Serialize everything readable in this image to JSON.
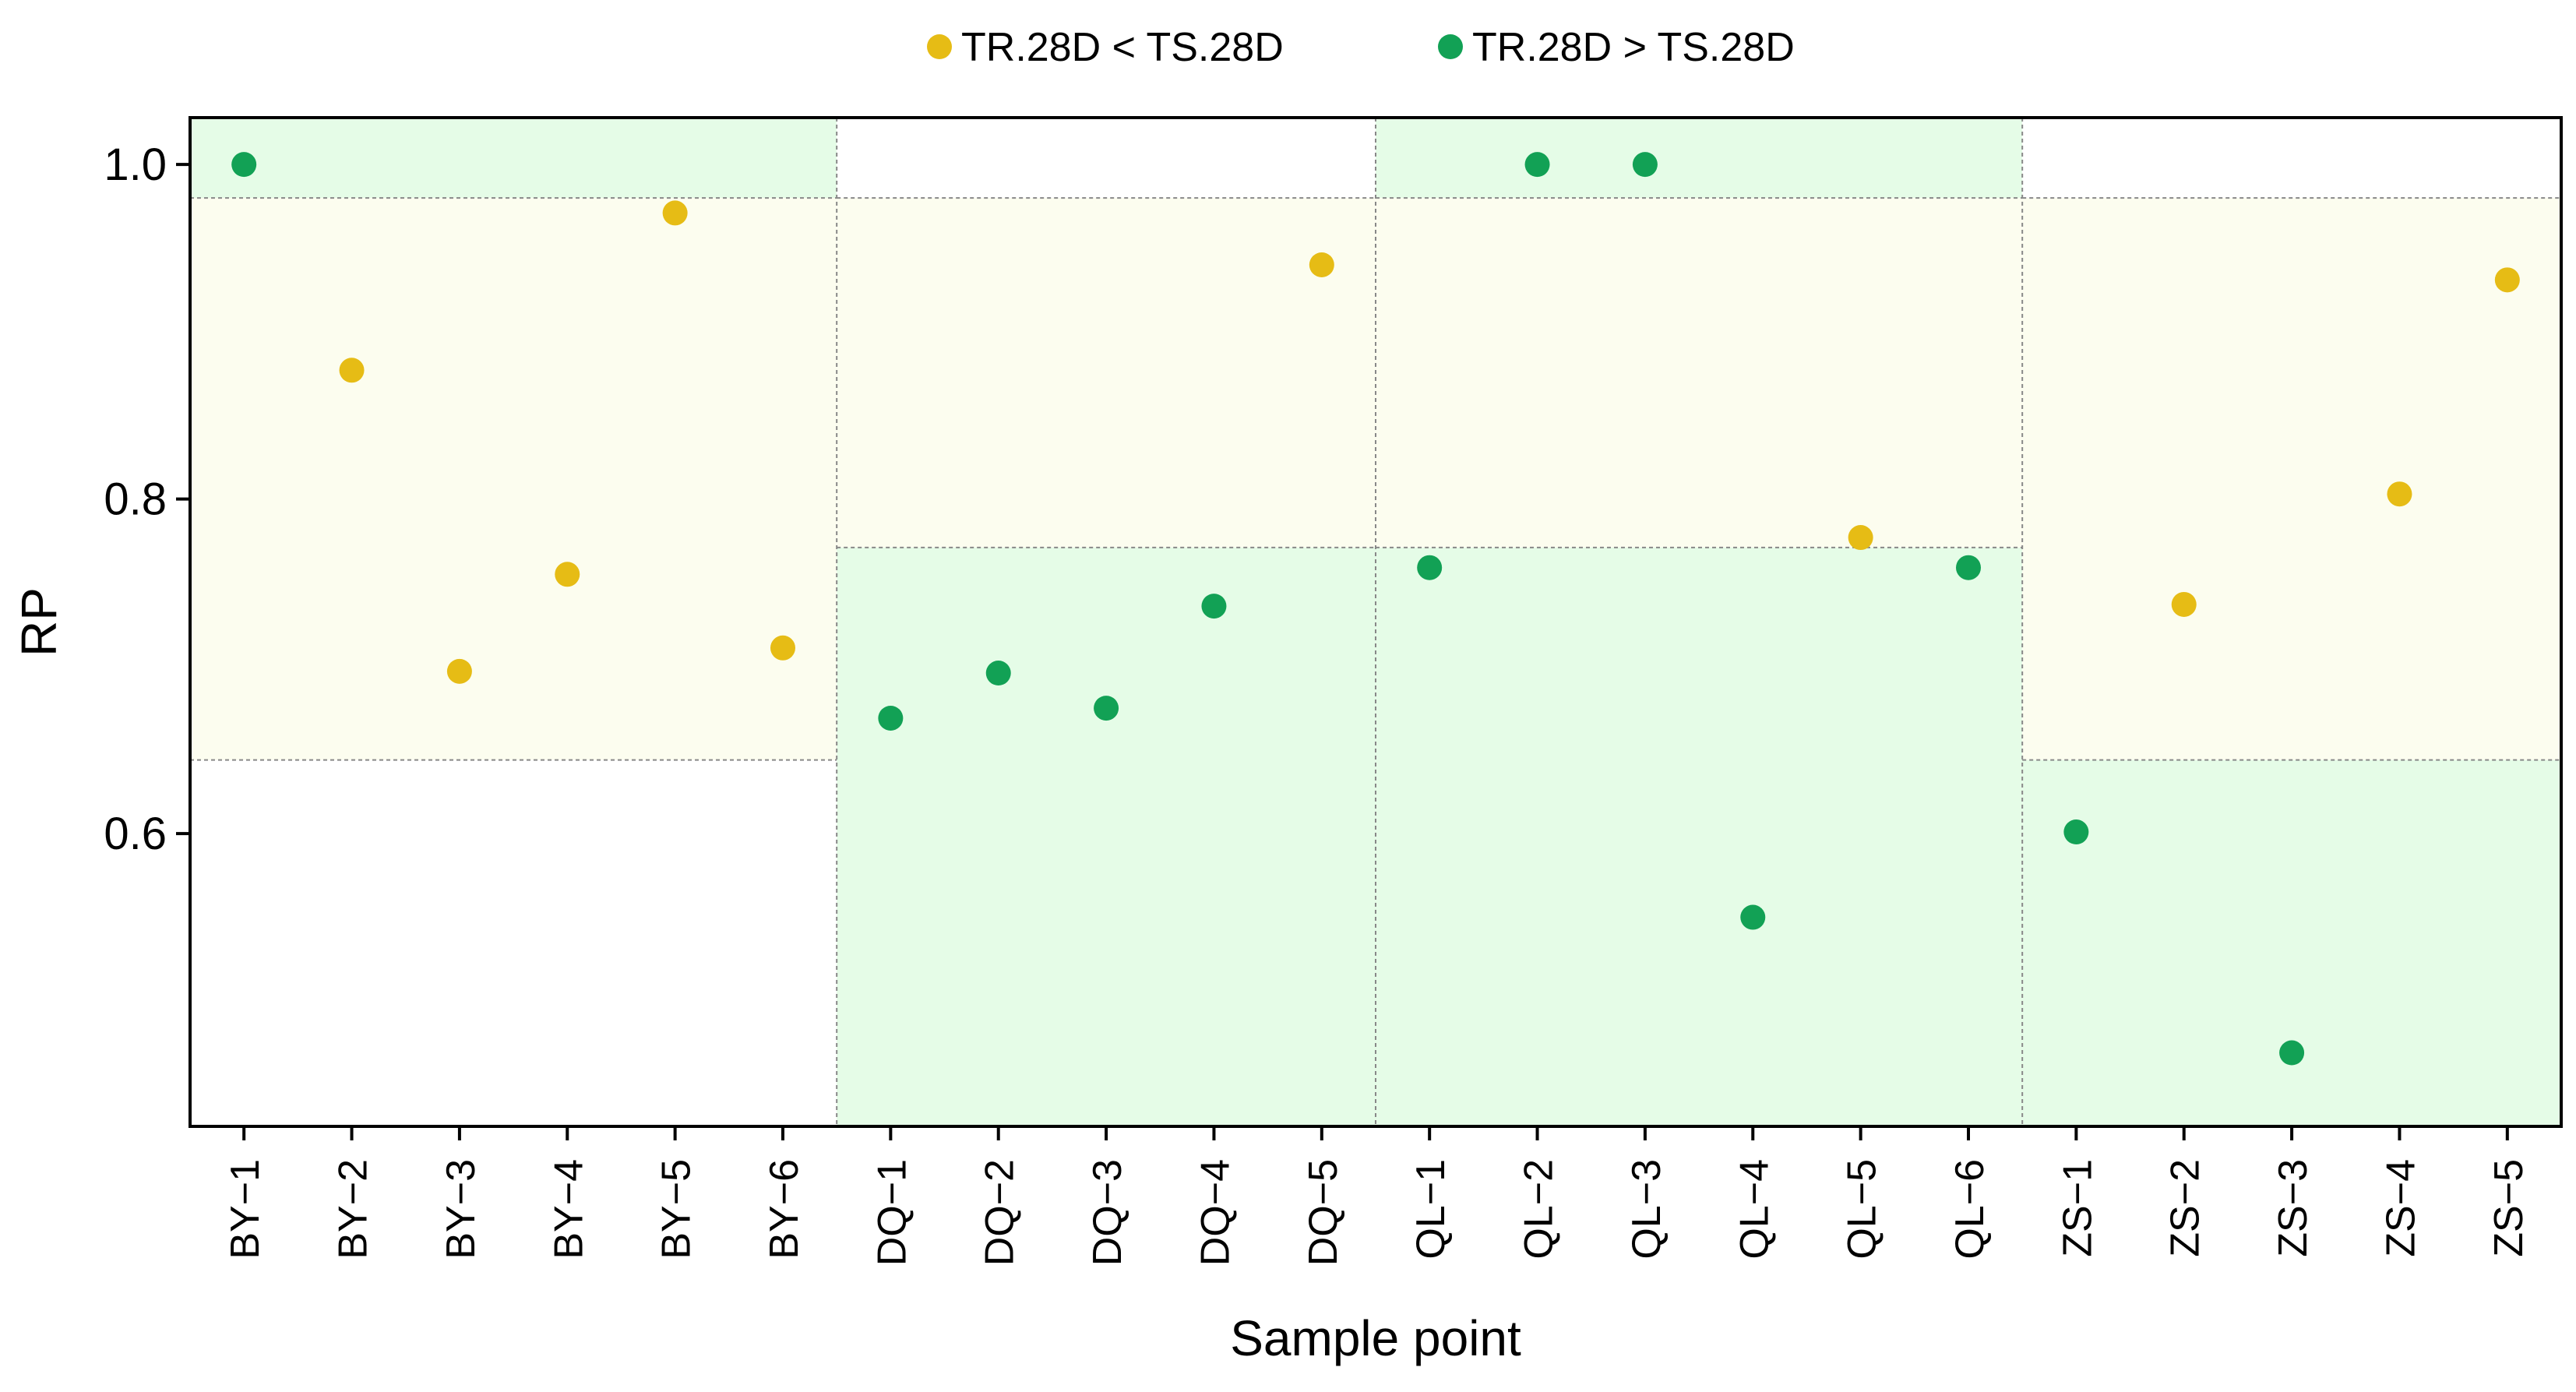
{
  "chart_data": {
    "type": "scatter",
    "title": "",
    "xlabel": "Sample point",
    "ylabel": "RP",
    "ylim": [
      0.425,
      1.028
    ],
    "yticks": [
      0.6,
      0.8,
      1.0
    ],
    "ytick_labels": [
      "0.6",
      "0.8",
      "1.0"
    ],
    "grid": false,
    "legend_position": "top-center",
    "colors": {
      "less": "#E6BC15",
      "greater": "#12A155",
      "band_green": "#E5FCE7",
      "band_yellow": "#FCFDEF",
      "divider": "#888888"
    },
    "legend": [
      {
        "key": "less",
        "label": "TR.28D < TS.28D"
      },
      {
        "key": "greater",
        "label": "TR.28D > TS.28D"
      }
    ],
    "categories": [
      "BY−1",
      "BY−2",
      "BY−3",
      "BY−4",
      "BY−5",
      "BY−6",
      "DQ−1",
      "DQ−2",
      "DQ−3",
      "DQ−4",
      "DQ−5",
      "QL−1",
      "QL−2",
      "QL−3",
      "QL−4",
      "QL−5",
      "QL−6",
      "ZS−1",
      "ZS−2",
      "ZS−3",
      "ZS−4",
      "ZS−5"
    ],
    "points": [
      {
        "x": "BY−1",
        "y": 1.0,
        "series": "greater"
      },
      {
        "x": "BY−2",
        "y": 0.877,
        "series": "less"
      },
      {
        "x": "BY−3",
        "y": 0.697,
        "series": "less"
      },
      {
        "x": "BY−4",
        "y": 0.755,
        "series": "less"
      },
      {
        "x": "BY−5",
        "y": 0.971,
        "series": "less"
      },
      {
        "x": "BY−6",
        "y": 0.711,
        "series": "less"
      },
      {
        "x": "DQ−1",
        "y": 0.669,
        "series": "greater"
      },
      {
        "x": "DQ−2",
        "y": 0.696,
        "series": "greater"
      },
      {
        "x": "DQ−3",
        "y": 0.675,
        "series": "greater"
      },
      {
        "x": "DQ−4",
        "y": 0.736,
        "series": "greater"
      },
      {
        "x": "DQ−5",
        "y": 0.94,
        "series": "less"
      },
      {
        "x": "QL−1",
        "y": 0.759,
        "series": "greater"
      },
      {
        "x": "QL−2",
        "y": 1.0,
        "series": "greater"
      },
      {
        "x": "QL−3",
        "y": 1.0,
        "series": "greater"
      },
      {
        "x": "QL−4",
        "y": 0.55,
        "series": "greater"
      },
      {
        "x": "QL−5",
        "y": 0.777,
        "series": "less"
      },
      {
        "x": "QL−6",
        "y": 0.759,
        "series": "greater"
      },
      {
        "x": "ZS−1",
        "y": 0.601,
        "series": "greater"
      },
      {
        "x": "ZS−2",
        "y": 0.737,
        "series": "less"
      },
      {
        "x": "ZS−3",
        "y": 0.469,
        "series": "greater"
      },
      {
        "x": "ZS−4",
        "y": 0.803,
        "series": "less"
      },
      {
        "x": "ZS−5",
        "y": 0.931,
        "series": "less"
      }
    ],
    "groups": [
      {
        "name": "BY",
        "from": "BY−1",
        "to": "BY−6",
        "bands": [
          {
            "y0": 0.98,
            "y1": 1.028,
            "color": "band_green"
          },
          {
            "y0": 0.644,
            "y1": 0.98,
            "color": "band_yellow"
          }
        ],
        "dividers": [
          0.98,
          0.644
        ]
      },
      {
        "name": "DQ",
        "from": "DQ−1",
        "to": "DQ−5",
        "bands": [
          {
            "y0": 0.771,
            "y1": 0.98,
            "color": "band_yellow"
          },
          {
            "y0": 0.425,
            "y1": 0.771,
            "color": "band_green"
          }
        ],
        "dividers": [
          0.98,
          0.771
        ]
      },
      {
        "name": "QL",
        "from": "QL−1",
        "to": "QL−6",
        "bands": [
          {
            "y0": 0.98,
            "y1": 1.028,
            "color": "band_green"
          },
          {
            "y0": 0.771,
            "y1": 0.98,
            "color": "band_yellow"
          },
          {
            "y0": 0.425,
            "y1": 0.771,
            "color": "band_green"
          }
        ],
        "dividers": [
          0.98,
          0.771
        ]
      },
      {
        "name": "ZS",
        "from": "ZS−1",
        "to": "ZS−5",
        "bands": [
          {
            "y0": 0.644,
            "y1": 0.98,
            "color": "band_yellow"
          },
          {
            "y0": 0.425,
            "y1": 0.644,
            "color": "band_green"
          }
        ],
        "dividers": [
          0.98,
          0.644
        ]
      }
    ]
  }
}
